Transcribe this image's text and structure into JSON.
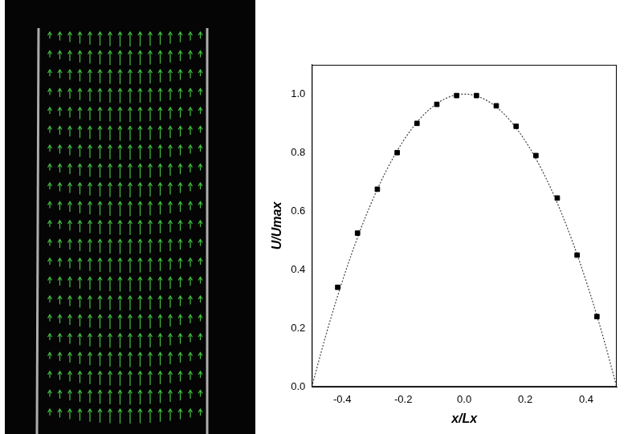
{
  "chart_data": {
    "type": "scatter",
    "x_label": "x/Lx",
    "y_label": "U/Umax",
    "xlim": [
      -0.5,
      0.5
    ],
    "xticks": [
      {
        "value": -0.4,
        "label": "-0.4"
      },
      {
        "value": -0.2,
        "label": "-0.2"
      },
      {
        "value": 0,
        "label": "0.0"
      },
      {
        "value": 0.2,
        "label": "0.2"
      },
      {
        "value": 0.4,
        "label": "0.4"
      }
    ],
    "ylim": [
      0,
      1.1
    ],
    "yticks": [
      {
        "value": 0,
        "label": "0.0"
      },
      0.2,
      0.4,
      0.6,
      0.8,
      {
        "value": 1,
        "label": "1.0"
      }
    ],
    "grid": false,
    "series": [
      {
        "type": "scatter",
        "marker": "square",
        "color": "#000000",
        "x": [
          -0.415,
          -0.35,
          -0.285,
          -0.22,
          -0.155,
          -0.09,
          -0.025,
          0.04,
          0.105,
          0.17,
          0.235,
          0.305,
          0.37,
          0.435
        ],
        "values": [
          0.34,
          0.525,
          0.675,
          0.8,
          0.9,
          0.965,
          0.995,
          0.995,
          0.96,
          0.89,
          0.79,
          0.645,
          0.45,
          0.24
        ]
      },
      {
        "type": "line",
        "line_style": "dotted",
        "color": "#444444",
        "x": [
          -0.5,
          -0.45,
          -0.4,
          -0.35,
          -0.3,
          -0.25,
          -0.2,
          -0.15,
          -0.1,
          -0.05,
          0,
          0.05,
          0.1,
          0.15,
          0.2,
          0.25,
          0.3,
          0.35,
          0.4,
          0.45,
          0.5
        ],
        "values": [
          0,
          0.19,
          0.36,
          0.51,
          0.64,
          0.75,
          0.84,
          0.91,
          0.96,
          0.99,
          1.0,
          0.99,
          0.96,
          0.91,
          0.84,
          0.75,
          0.64,
          0.51,
          0.36,
          0.19,
          0
        ]
      }
    ]
  }
}
